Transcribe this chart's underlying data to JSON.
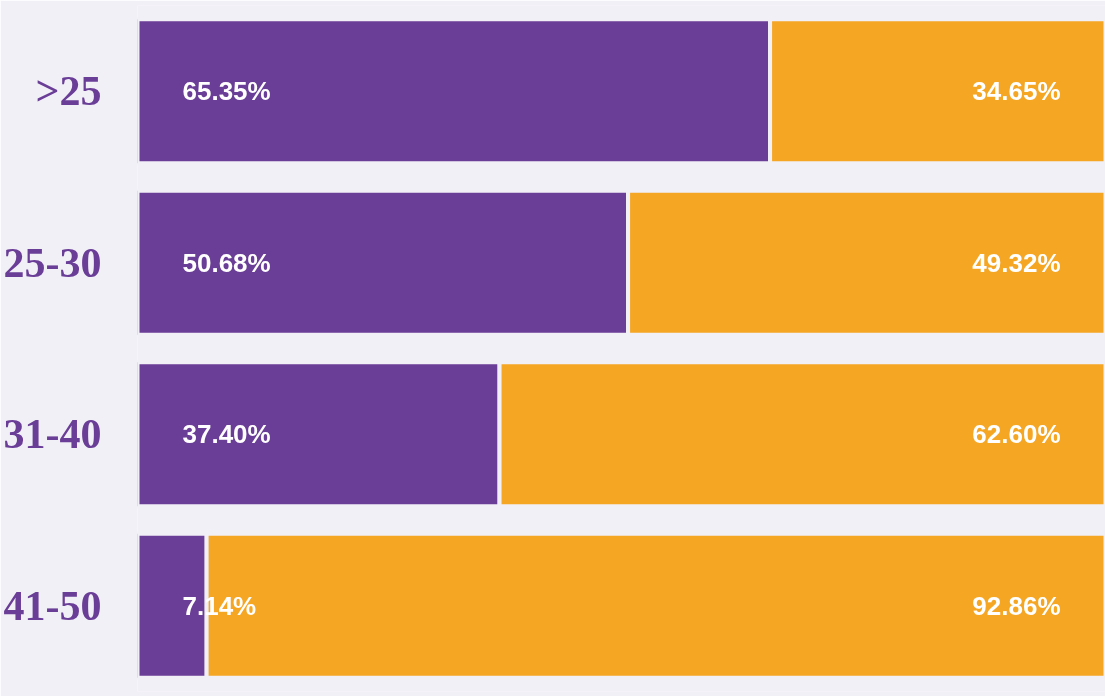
{
  "chart_data": {
    "type": "bar",
    "orientation": "horizontal",
    "stacked": true,
    "categories": [
      ">25",
      "25-30",
      "31-40",
      "41-50"
    ],
    "xlim": [
      0,
      100
    ],
    "tick_labels": "y",
    "grid": false,
    "series": [
      {
        "color": "#6a3d96",
        "values": [
          65.35,
          50.68,
          37.4,
          7.14
        ],
        "value_labels": [
          "65.35%",
          "50.68%",
          "37.40%",
          "7.14%"
        ]
      },
      {
        "color": "#f5a623",
        "values": [
          34.65,
          49.32,
          62.6,
          92.86
        ],
        "value_labels": [
          "34.65%",
          "49.32%",
          "62.60%",
          "92.86%"
        ]
      }
    ]
  }
}
